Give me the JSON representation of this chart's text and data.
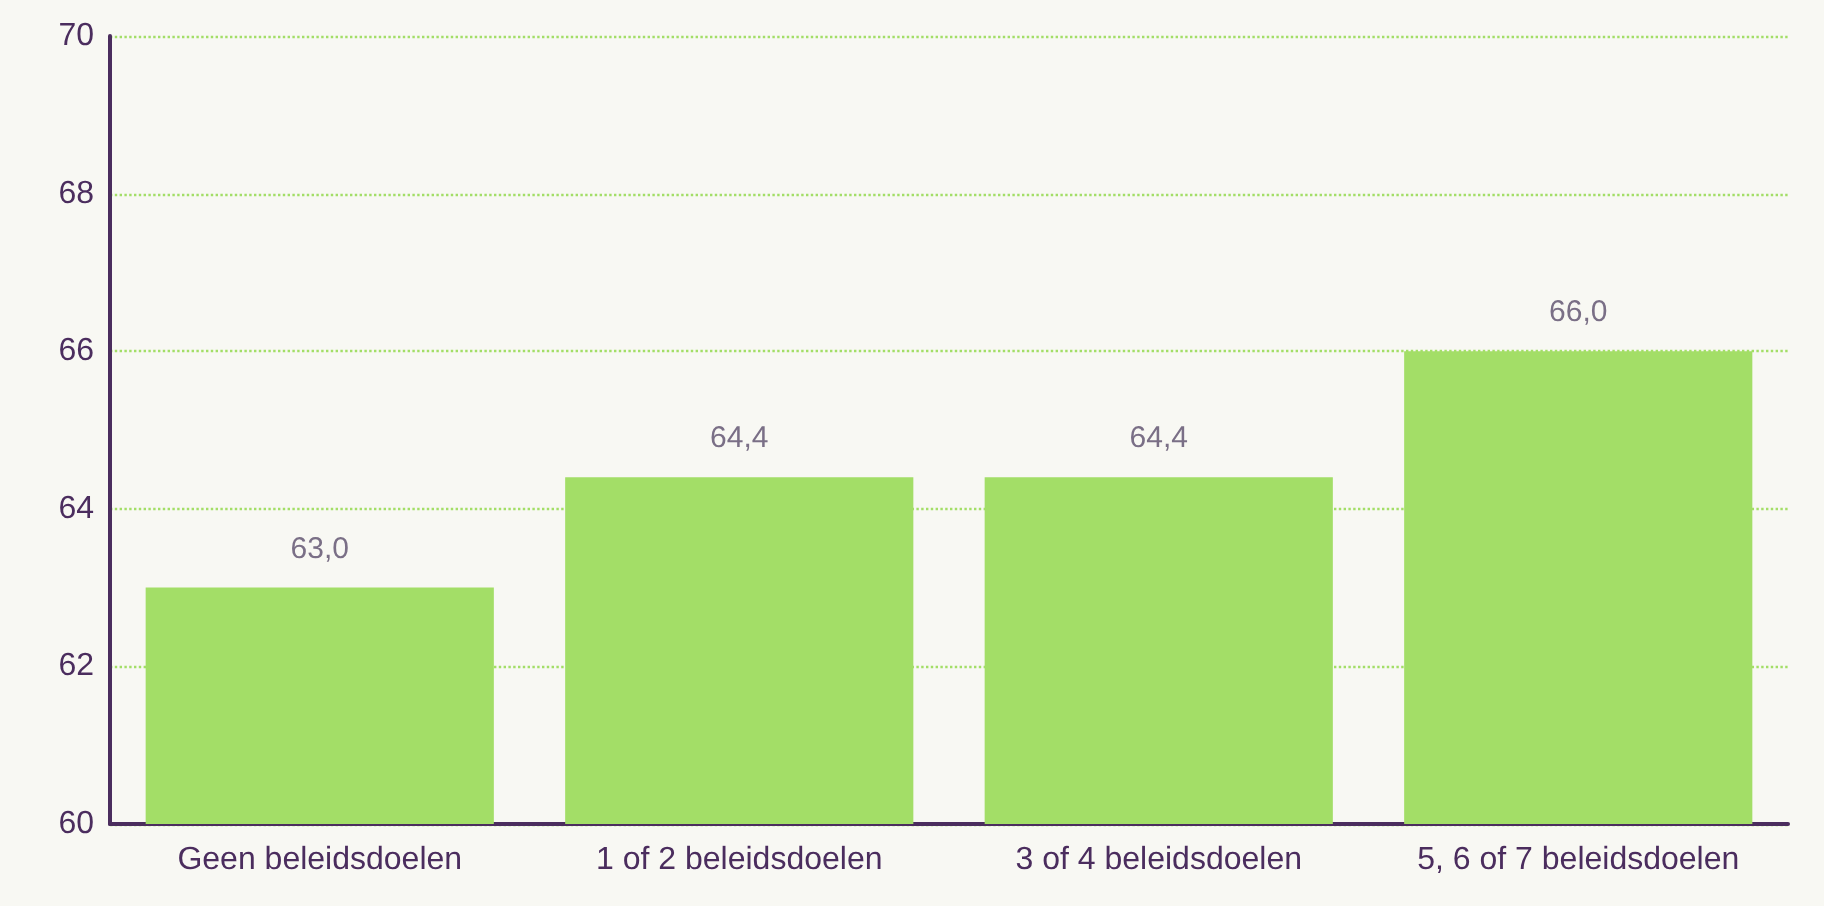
{
  "chart_data": {
    "type": "bar",
    "categories": [
      "Geen beleidsdoelen",
      "1 of 2 beleidsdoelen",
      "3 of 4 beleidsdoelen",
      "5, 6 of 7 beleidsdoelen"
    ],
    "values": [
      63.0,
      64.4,
      64.4,
      66.0
    ],
    "value_labels": [
      "63,0",
      "64,4",
      "64,4",
      "66,0"
    ],
    "color": "#a3de67",
    "ylim": [
      60,
      70
    ],
    "yticks": [
      60,
      62,
      64,
      66,
      68,
      70
    ],
    "grid": "y"
  }
}
